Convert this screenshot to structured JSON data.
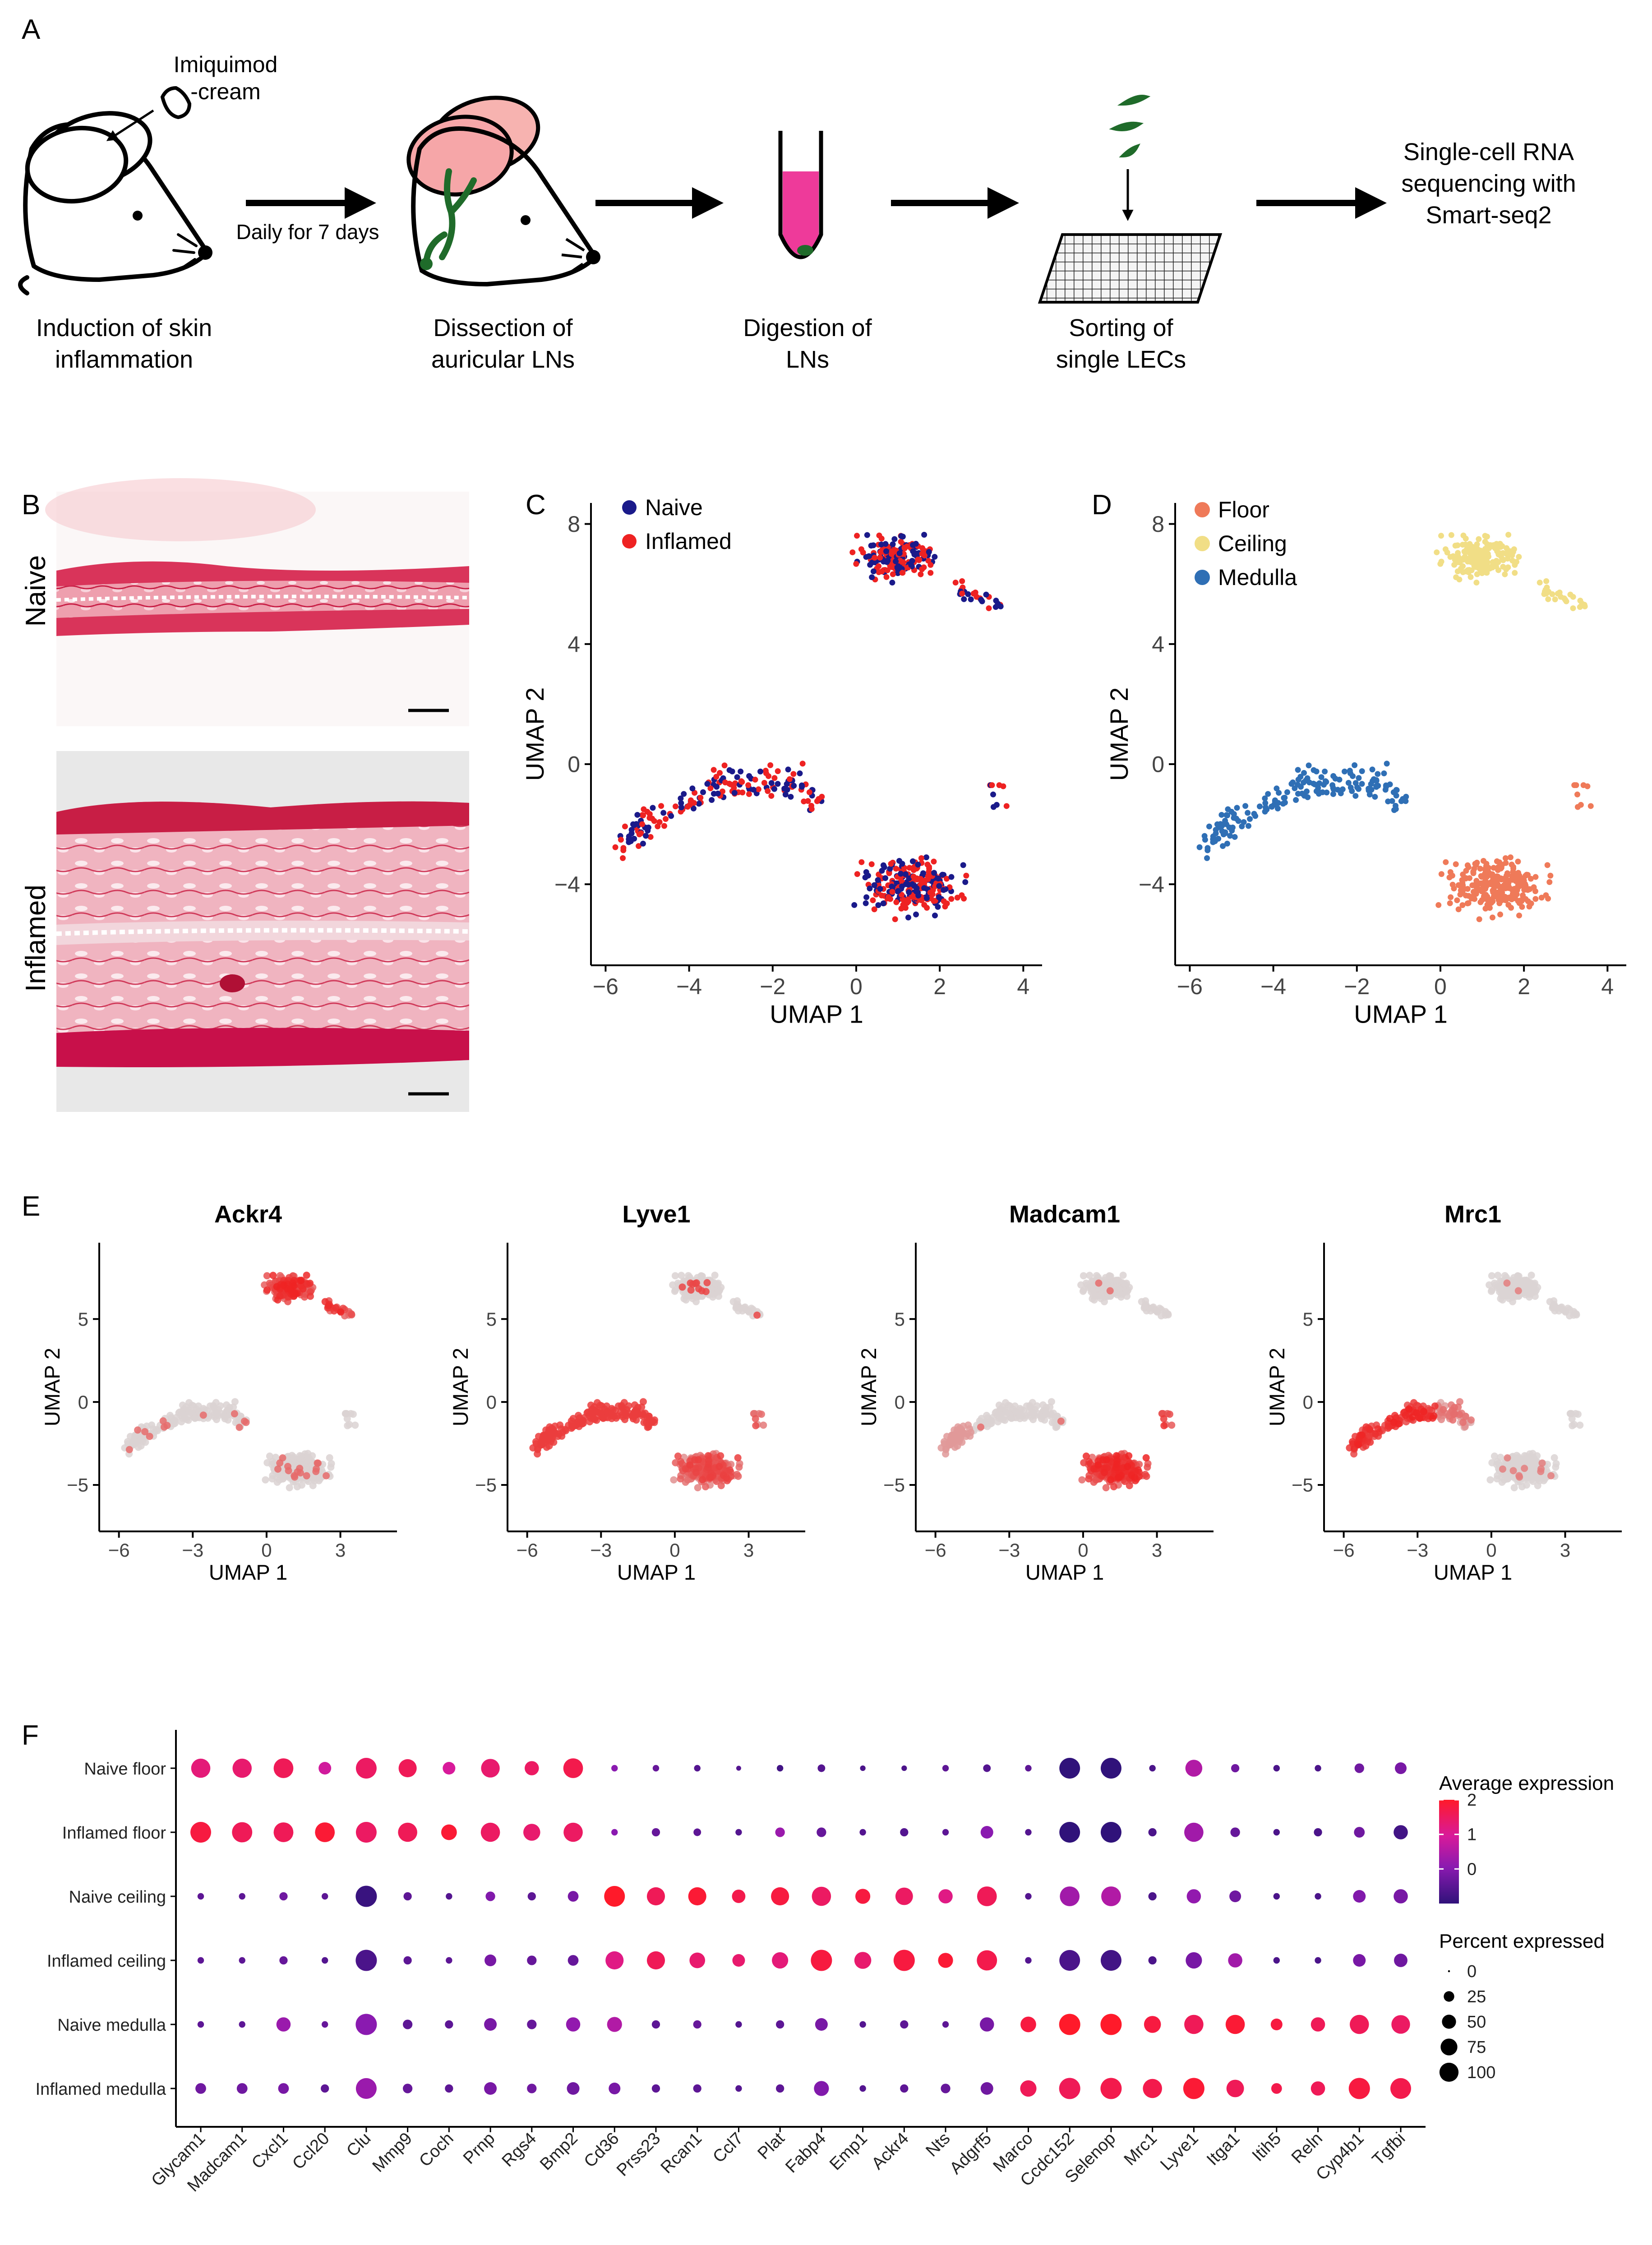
{
  "colors": {
    "naive": "#1a1a8a",
    "inflamed": "#ee2222",
    "floor": "#ef7a59",
    "ceiling": "#f1de86",
    "medulla": "#2f6fb5",
    "feature_high": "#ee2222",
    "feature_low": "#d9d9d9",
    "skin_pink": "#d9345a",
    "tube_pink": "#ee3a9a",
    "vessel_green": "#1f6b2a"
  },
  "panel_a": {
    "label": "A",
    "cream_label": "Imiquimod\n-cream",
    "arrow1_label": "Daily for 7 days",
    "steps": [
      "Induction of skin\ninflammation",
      "Dissection of\nauricular LNs",
      "Digestion of\nLNs",
      "Sorting of\nsingle LECs",
      "Single-cell RNA\nsequencing with\nSmart-seq2"
    ]
  },
  "panel_b": {
    "label": "B",
    "rows": [
      "Naive",
      "Inflamed"
    ]
  },
  "panel_c": {
    "label": "C",
    "legend": [
      "Naive",
      "Inflamed"
    ],
    "xlabel": "UMAP 1",
    "ylabel": "UMAP 2",
    "xticks": [
      "−6",
      "−4",
      "−2",
      "0",
      "2",
      "4"
    ],
    "yticks": [
      "8",
      "4",
      "0",
      "−4"
    ]
  },
  "panel_d": {
    "label": "D",
    "legend": [
      "Floor",
      "Ceiling",
      "Medulla"
    ],
    "xlabel": "UMAP 1",
    "ylabel": "UMAP 2",
    "xticks": [
      "−6",
      "−4",
      "−2",
      "0",
      "2",
      "4"
    ],
    "yticks": [
      "8",
      "4",
      "0",
      "−4"
    ]
  },
  "panel_e": {
    "label": "E",
    "genes": [
      "Ackr4",
      "Lyve1",
      "Madcam1",
      "Mrc1"
    ],
    "xlabel": "UMAP 1",
    "ylabel": "UMAP 2",
    "xticks": [
      "−6",
      "−3",
      "0",
      "3"
    ],
    "yticks": [
      "5",
      "0",
      "−5"
    ]
  },
  "chart_data": {
    "type": "scatter",
    "kind": "dot plot",
    "panel_label": "F",
    "rows": [
      "Naive floor",
      "Inflamed floor",
      "Naive ceiling",
      "Inflamed ceiling",
      "Naive medulla",
      "Inflamed medulla"
    ],
    "genes": [
      "Glycam1",
      "Madcam1",
      "Cxcl1",
      "Ccl20",
      "Clu",
      "Mmp9",
      "Coch",
      "Prnp",
      "Rgs4",
      "Bmp2",
      "Cd36",
      "Prss23",
      "Rcan1",
      "Ccl7",
      "Plat",
      "Fabp4",
      "Emp1",
      "Ackr4",
      "Nts",
      "Adgrf5",
      "Marco",
      "Ccdc152",
      "Selenop",
      "Mrc1",
      "Lyve1",
      "Itga1",
      "Itih5",
      "Reln",
      "Cyp4b1",
      "Tgfbi"
    ],
    "avg_expression": [
      [
        1.3,
        1.4,
        1.6,
        0.9,
        1.5,
        1.6,
        1.0,
        1.4,
        1.5,
        1.7,
        0.0,
        -0.4,
        -0.6,
        -0.6,
        -0.8,
        -0.6,
        -0.7,
        -0.7,
        -0.5,
        -0.6,
        -0.5,
        -1.0,
        -1.0,
        -0.7,
        0.5,
        -0.3,
        -0.7,
        -0.7,
        -0.3,
        -0.2
      ],
      [
        1.8,
        1.6,
        1.6,
        1.9,
        1.5,
        1.6,
        1.9,
        1.5,
        1.4,
        1.5,
        0.0,
        -0.4,
        -0.5,
        -0.6,
        0.2,
        -0.4,
        -0.6,
        -0.6,
        -0.5,
        0.0,
        -0.6,
        -1.0,
        -1.0,
        -0.7,
        0.3,
        -0.4,
        -0.7,
        -0.7,
        -0.3,
        -0.8
      ],
      [
        -0.5,
        -0.5,
        -0.3,
        -0.5,
        -0.9,
        -0.5,
        -0.6,
        -0.1,
        -0.5,
        -0.2,
        2.0,
        1.6,
        1.9,
        1.7,
        1.8,
        1.5,
        1.8,
        1.5,
        1.2,
        1.6,
        -0.6,
        0.3,
        0.5,
        -0.7,
        0.1,
        -0.3,
        -0.7,
        -0.7,
        -0.1,
        -0.2
      ],
      [
        -0.5,
        -0.5,
        -0.4,
        -0.6,
        -0.7,
        -0.5,
        -0.5,
        -0.2,
        -0.4,
        -0.4,
        1.2,
        1.6,
        1.4,
        1.4,
        1.3,
        1.8,
        1.4,
        1.8,
        1.9,
        1.7,
        -0.6,
        -0.7,
        -0.8,
        -0.7,
        -0.2,
        0.3,
        -0.7,
        -0.7,
        -0.2,
        -0.3
      ],
      [
        -0.5,
        -0.5,
        0.2,
        -0.4,
        0.0,
        -0.5,
        -0.5,
        -0.2,
        -0.4,
        0.1,
        0.5,
        -0.5,
        -0.4,
        -0.6,
        -0.5,
        -0.2,
        -0.6,
        -0.5,
        -0.5,
        -0.2,
        1.8,
        2.0,
        2.0,
        1.8,
        1.6,
        1.9,
        1.8,
        1.6,
        1.6,
        1.5
      ],
      [
        -0.3,
        -0.3,
        -0.2,
        -0.5,
        0.2,
        -0.4,
        -0.5,
        -0.2,
        -0.3,
        -0.3,
        -0.2,
        -0.5,
        -0.5,
        -0.6,
        -0.5,
        -0.1,
        -0.6,
        -0.5,
        -0.4,
        -0.3,
        1.6,
        1.6,
        1.7,
        1.7,
        1.9,
        1.6,
        1.7,
        1.6,
        1.8,
        1.7
      ]
    ],
    "pct_expressed": [
      [
        80,
        80,
        85,
        30,
        95,
        70,
        30,
        75,
        40,
        85,
        5,
        5,
        5,
        2,
        5,
        8,
        3,
        3,
        5,
        8,
        5,
        95,
        95,
        5,
        60,
        10,
        5,
        5,
        15,
        25
      ],
      [
        95,
        90,
        85,
        85,
        95,
        80,
        50,
        80,
        60,
        80,
        5,
        10,
        8,
        5,
        15,
        15,
        5,
        10,
        5,
        30,
        5,
        95,
        95,
        10,
        80,
        15,
        5,
        10,
        20,
        40
      ],
      [
        5,
        5,
        10,
        5,
        100,
        10,
        5,
        15,
        10,
        20,
        95,
        70,
        70,
        35,
        70,
        80,
        45,
        65,
        40,
        85,
        5,
        85,
        85,
        10,
        40,
        25,
        5,
        5,
        30,
        40
      ],
      [
        5,
        5,
        10,
        5,
        100,
        10,
        5,
        25,
        15,
        20,
        70,
        70,
        50,
        30,
        55,
        100,
        60,
        100,
        45,
        90,
        5,
        95,
        95,
        10,
        55,
        40,
        5,
        5,
        30,
        35
      ],
      [
        5,
        5,
        40,
        5,
        100,
        15,
        10,
        30,
        15,
        40,
        45,
        10,
        10,
        5,
        10,
        30,
        5,
        10,
        5,
        40,
        50,
        100,
        100,
        60,
        80,
        80,
        25,
        40,
        80,
        75
      ],
      [
        20,
        20,
        20,
        10,
        95,
        15,
        10,
        30,
        15,
        30,
        25,
        10,
        10,
        5,
        10,
        45,
        5,
        10,
        15,
        30,
        55,
        100,
        100,
        80,
        100,
        65,
        20,
        40,
        100,
        95
      ]
    ],
    "legend_color_title": "Average expression",
    "color_ticks": [
      "2",
      "1",
      "0"
    ],
    "color_range": [
      -1,
      2
    ],
    "legend_size_title": "Percent expressed",
    "size_ticks": [
      "0",
      "25",
      "50",
      "75",
      "100"
    ]
  }
}
